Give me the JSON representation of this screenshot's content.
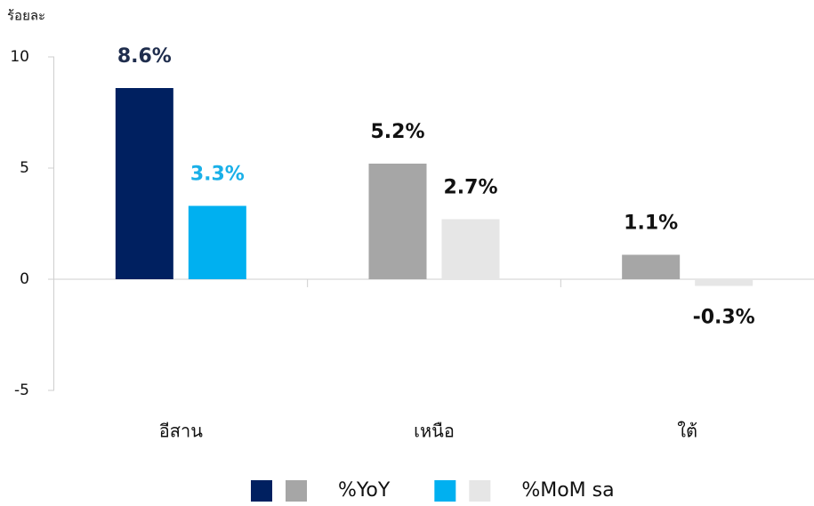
{
  "chart_data": {
    "type": "bar",
    "y_label": "ร้อยละ",
    "categories": [
      "อีสาน",
      "เหนือ",
      "ใต้"
    ],
    "series": [
      {
        "name": "%YoY",
        "colors": [
          "#002060",
          "#a6a6a6",
          "#a6a6a6"
        ],
        "label_colors": [
          "#1f2d4d",
          "#111111",
          "#111111"
        ],
        "values": [
          8.6,
          5.2,
          1.1
        ],
        "value_labels": [
          "8.6%",
          "5.2%",
          "1.1%"
        ]
      },
      {
        "name": "%MoM sa",
        "colors": [
          "#00b0f0",
          "#e6e6e6",
          "#e6e6e6"
        ],
        "label_colors": [
          "#1ab0e8",
          "#111111",
          "#111111"
        ],
        "values": [
          3.3,
          2.7,
          -0.3
        ],
        "value_labels": [
          "3.3%",
          "2.7%",
          "-0.3%"
        ]
      }
    ],
    "ylim": [
      -5,
      10
    ],
    "yticks": [
      -5,
      0,
      5,
      10
    ],
    "legend": "bottom"
  }
}
